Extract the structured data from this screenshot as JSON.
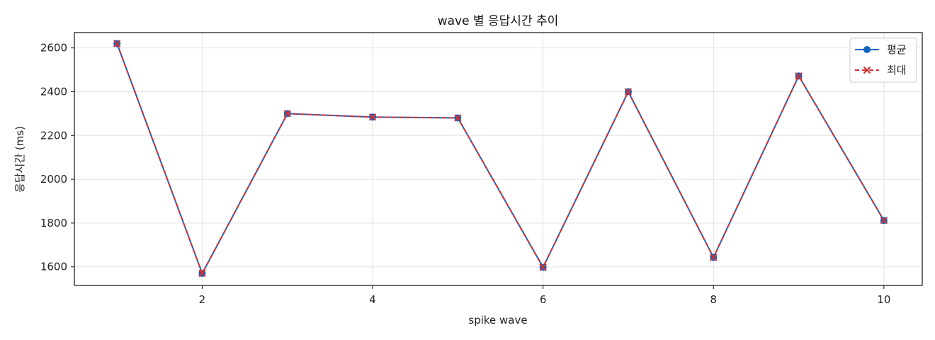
{
  "chart_data": {
    "type": "line",
    "title": "wave 별 응답시간 추이",
    "xlabel": "spike wave",
    "ylabel": "응답시간 (ms)",
    "x": [
      1,
      2,
      3,
      4,
      5,
      6,
      7,
      8,
      9,
      10
    ],
    "xlim": [
      0.5,
      10.45
    ],
    "ylim": [
      1515,
      2670
    ],
    "xticks": [
      2,
      4,
      6,
      8,
      10
    ],
    "yticks": [
      1600,
      1800,
      2000,
      2200,
      2400,
      2600
    ],
    "grid": true,
    "legend_position": "top-right",
    "series": [
      {
        "name": "평균",
        "values": [
          2620,
          1570,
          2300,
          2284,
          2280,
          1598,
          2400,
          1643,
          2472,
          1812
        ],
        "color": "#1565c0",
        "line_style": "solid",
        "marker": "circle"
      },
      {
        "name": "최대",
        "values": [
          2620,
          1570,
          2300,
          2284,
          2280,
          1598,
          2400,
          1643,
          2472,
          1812
        ],
        "color": "#d32f2f",
        "line_style": "dashed",
        "marker": "x"
      }
    ]
  }
}
